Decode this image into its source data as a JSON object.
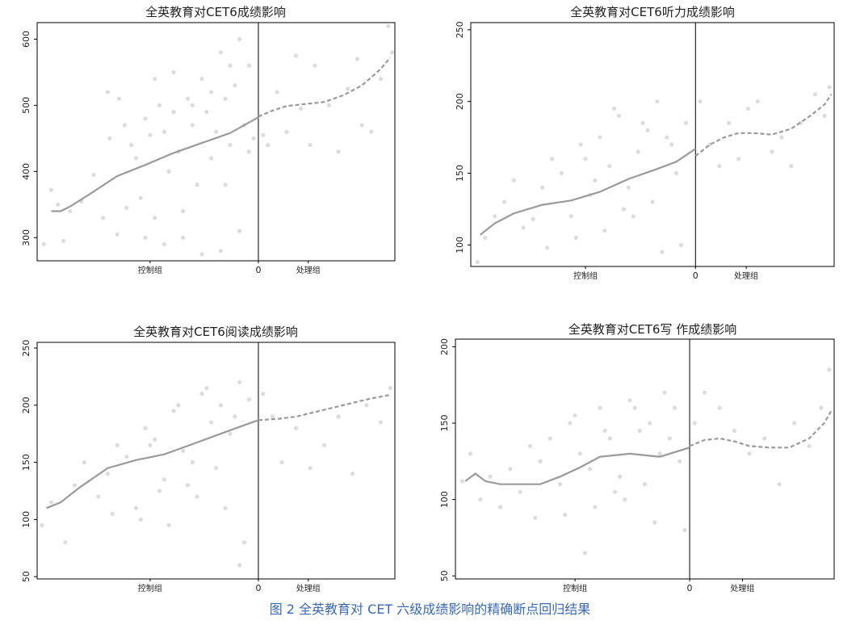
{
  "caption": "图 2 全英教育对 CET 六级成绩影响的精确断点回归结果",
  "colors": {
    "points": "#dcdcdc",
    "fit": "#9a9a9a",
    "axis": "#000000",
    "caption": "#3a68b4"
  },
  "chart_data": [
    {
      "type": "scatter",
      "title": "全英教育对CET6成绩影响",
      "x_ticks": [
        "控制组",
        "0",
        "处理组"
      ],
      "x_range": [
        -2.35,
        1.45
      ],
      "ylim": [
        265,
        625
      ],
      "y_ticks": [
        300,
        400,
        500,
        600
      ],
      "fit_control": {
        "x": [
          -2.2,
          -2.1,
          -2.0,
          -1.8,
          -1.5,
          -1.2,
          -0.9,
          -0.6,
          -0.3,
          0.0
        ],
        "y": [
          340,
          340,
          347,
          365,
          393,
          410,
          428,
          443,
          458,
          482
        ]
      },
      "fit_treatment": {
        "x": [
          0.0,
          0.15,
          0.3,
          0.5,
          0.7,
          0.9,
          1.1,
          1.3,
          1.4
        ],
        "y": [
          483,
          492,
          499,
          502,
          505,
          515,
          530,
          555,
          572
        ]
      },
      "points": {
        "x": [
          -2.28,
          -2.2,
          -2.13,
          -2.07,
          -2.0,
          -1.88,
          -1.75,
          -1.65,
          -1.58,
          -1.48,
          -1.42,
          -1.35,
          -1.3,
          -1.25,
          -1.2,
          -1.15,
          -1.1,
          -1.05,
          -1.0,
          -0.95,
          -0.9,
          -0.85,
          -0.8,
          -0.75,
          -0.7,
          -0.65,
          -0.6,
          -0.55,
          -0.5,
          -0.45,
          -0.4,
          -0.35,
          -0.3,
          -0.25,
          -0.2,
          -0.15,
          -0.1,
          -0.05,
          -1.5,
          -1.4,
          -1.2,
          -1.0,
          -0.8,
          -0.6,
          -0.4,
          -0.2,
          -0.9,
          -0.7,
          -0.5,
          -0.3,
          -0.1,
          -1.6,
          -1.1,
          -0.35,
          0.05,
          0.1,
          0.2,
          0.3,
          0.4,
          0.45,
          0.55,
          0.6,
          0.75,
          0.85,
          0.95,
          1.05,
          1.1,
          1.2,
          1.3,
          1.38,
          1.42
        ],
        "y": [
          290,
          372,
          350,
          295,
          340,
          355,
          395,
          330,
          450,
          510,
          470,
          440,
          420,
          360,
          480,
          455,
          330,
          500,
          460,
          400,
          550,
          430,
          340,
          510,
          470,
          380,
          540,
          490,
          420,
          460,
          580,
          510,
          440,
          530,
          600,
          470,
          560,
          450,
          305,
          345,
          300,
          290,
          300,
          275,
          280,
          310,
          490,
          500,
          520,
          560,
          430,
          520,
          540,
          380,
          455,
          440,
          520,
          460,
          575,
          495,
          440,
          560,
          500,
          430,
          525,
          570,
          470,
          460,
          540,
          620,
          580
        ]
      }
    },
    {
      "type": "scatter",
      "title": "全英教育对CET6听力成绩影响",
      "x_ticks": [
        "控制组",
        "0",
        "处理组"
      ],
      "x_range": [
        -2.35,
        1.45
      ],
      "ylim": [
        85,
        255
      ],
      "y_ticks": [
        100,
        150,
        200,
        250
      ],
      "fit_control": {
        "x": [
          -2.25,
          -2.1,
          -1.9,
          -1.6,
          -1.3,
          -1.0,
          -0.7,
          -0.4,
          -0.2,
          0.0
        ],
        "y": [
          107,
          115,
          122,
          128,
          131,
          137,
          146,
          153,
          158,
          167
        ]
      },
      "fit_treatment": {
        "x": [
          0.0,
          0.15,
          0.3,
          0.45,
          0.6,
          0.8,
          1.0,
          1.2,
          1.35,
          1.42
        ],
        "y": [
          162,
          170,
          175,
          178,
          178,
          177,
          181,
          190,
          198,
          205
        ]
      },
      "points": {
        "x": [
          -2.28,
          -2.2,
          -2.1,
          -2.0,
          -1.9,
          -1.8,
          -1.7,
          -1.6,
          -1.5,
          -1.4,
          -1.3,
          -1.2,
          -1.1,
          -1.0,
          -0.9,
          -0.8,
          -0.7,
          -0.6,
          -0.5,
          -0.4,
          -0.3,
          -0.2,
          -0.1,
          -1.55,
          -1.25,
          -0.95,
          -0.65,
          -0.35,
          -0.15,
          -1.15,
          -0.85,
          -0.55,
          -0.25,
          -0.45,
          -0.75,
          -1.05,
          0.05,
          0.15,
          0.25,
          0.35,
          0.45,
          0.55,
          0.65,
          0.8,
          0.9,
          1.0,
          1.1,
          1.25,
          1.35,
          1.4
        ],
        "y": [
          88,
          105,
          120,
          130,
          145,
          112,
          118,
          140,
          160,
          150,
          120,
          170,
          135,
          175,
          155,
          190,
          140,
          165,
          180,
          200,
          175,
          150,
          185,
          98,
          105,
          110,
          120,
          95,
          100,
          160,
          195,
          185,
          170,
          130,
          125,
          145,
          200,
          170,
          155,
          185,
          160,
          195,
          200,
          165,
          175,
          155,
          185,
          205,
          190,
          210
        ]
      }
    },
    {
      "type": "scatter",
      "title": "全英教育对CET6阅读成绩影响",
      "x_ticks": [
        "控制组",
        "0",
        "处理组"
      ],
      "x_range": [
        -2.35,
        1.45
      ],
      "ylim": [
        48,
        255
      ],
      "y_ticks": [
        50,
        100,
        150,
        200,
        250
      ],
      "fit_control": {
        "x": [
          -2.25,
          -2.1,
          -1.9,
          -1.6,
          -1.3,
          -1.0,
          -0.7,
          -0.4,
          -0.2,
          0.0
        ],
        "y": [
          110,
          115,
          128,
          145,
          152,
          157,
          166,
          175,
          181,
          187
        ]
      },
      "fit_treatment": {
        "x": [
          0.0,
          0.2,
          0.4,
          0.6,
          0.8,
          1.0,
          1.2,
          1.4
        ],
        "y": [
          187,
          188,
          190,
          194,
          198,
          202,
          206,
          209
        ]
      },
      "points": {
        "x": [
          -2.3,
          -2.2,
          -2.05,
          -1.95,
          -1.85,
          -1.7,
          -1.6,
          -1.5,
          -1.4,
          -1.3,
          -1.2,
          -1.1,
          -1.0,
          -0.9,
          -0.8,
          -0.7,
          -0.6,
          -0.5,
          -0.4,
          -0.3,
          -0.2,
          -0.1,
          -1.55,
          -1.25,
          -0.95,
          -0.65,
          -0.35,
          -0.15,
          -1.15,
          -0.85,
          -0.55,
          -0.25,
          -0.45,
          -0.75,
          -1.05,
          -0.2,
          0.05,
          0.15,
          0.25,
          0.4,
          0.55,
          0.7,
          0.85,
          1.0,
          1.15,
          1.3,
          1.4
        ],
        "y": [
          95,
          115,
          80,
          130,
          150,
          120,
          140,
          165,
          155,
          110,
          180,
          170,
          135,
          195,
          160,
          150,
          210,
          185,
          200,
          175,
          220,
          205,
          105,
          100,
          95,
          120,
          110,
          80,
          165,
          200,
          215,
          190,
          145,
          130,
          125,
          60,
          210,
          190,
          150,
          180,
          145,
          165,
          190,
          140,
          200,
          185,
          215
        ]
      }
    },
    {
      "type": "scatter",
      "title": "全英教育对CET6写 作成绩影响",
      "x_ticks": [
        "控制组",
        "0",
        "处理组"
      ],
      "x_range": [
        -2.35,
        1.45
      ],
      "ylim": [
        48,
        205
      ],
      "y_ticks": [
        50,
        100,
        150,
        200
      ],
      "fit_control": {
        "x": [
          -2.25,
          -2.15,
          -2.05,
          -1.9,
          -1.7,
          -1.5,
          -1.3,
          -1.1,
          -0.9,
          -0.6,
          -0.3,
          0.0
        ],
        "y": [
          112,
          117,
          112,
          110,
          110,
          110,
          115,
          121,
          128,
          130,
          128,
          134
        ]
      },
      "fit_treatment": {
        "x": [
          0.0,
          0.15,
          0.3,
          0.45,
          0.6,
          0.8,
          1.0,
          1.2,
          1.35,
          1.42
        ],
        "y": [
          135,
          139,
          140,
          138,
          135,
          134,
          134,
          140,
          150,
          158
        ]
      },
      "points": {
        "x": [
          -2.28,
          -2.2,
          -2.1,
          -2.0,
          -1.9,
          -1.8,
          -1.7,
          -1.6,
          -1.5,
          -1.4,
          -1.3,
          -1.2,
          -1.1,
          -1.0,
          -0.9,
          -0.8,
          -0.7,
          -0.6,
          -0.5,
          -0.4,
          -0.3,
          -0.2,
          -0.1,
          -1.55,
          -1.25,
          -0.95,
          -0.65,
          -0.35,
          -0.15,
          -1.15,
          -0.85,
          -0.55,
          -0.25,
          -0.45,
          -0.75,
          -1.05,
          -0.05,
          0.05,
          0.15,
          0.3,
          0.45,
          0.6,
          0.75,
          0.9,
          1.05,
          1.2,
          1.32,
          1.4
        ],
        "y": [
          112,
          130,
          100,
          115,
          95,
          120,
          105,
          135,
          125,
          140,
          110,
          150,
          130,
          120,
          160,
          140,
          115,
          165,
          145,
          150,
          130,
          140,
          125,
          88,
          90,
          95,
          100,
          85,
          160,
          155,
          145,
          160,
          170,
          110,
          105,
          65,
          80,
          150,
          170,
          160,
          145,
          130,
          140,
          110,
          150,
          135,
          160,
          185
        ]
      }
    }
  ]
}
